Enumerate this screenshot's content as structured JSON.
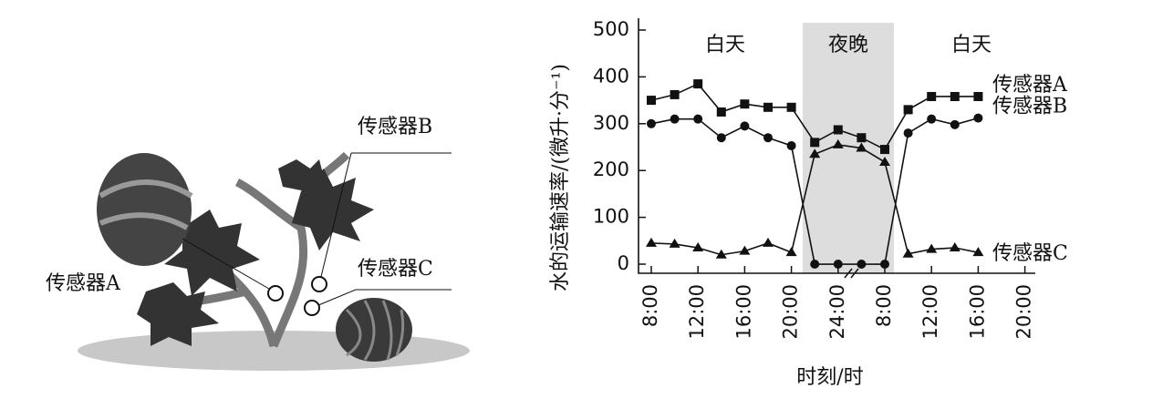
{
  "illustration": {
    "labels": [
      "传感器A",
      "传感器B",
      "传感器C"
    ]
  },
  "chart_data": {
    "type": "line",
    "ylabel": "水的运输速率/(微升·分⁻¹)",
    "xlabel": "时刻/时",
    "annotations": [
      "白天",
      "夜晚",
      "白天"
    ],
    "categories": [
      "8:00",
      null,
      "12:00",
      null,
      "16:00",
      null,
      "20:00",
      null,
      "24:00",
      null,
      "8:00",
      null,
      "12:00",
      null,
      "16:00",
      null,
      "20:00"
    ],
    "series": [
      {
        "name": "传感器A",
        "color": "#111111",
        "marker": "square",
        "values": [
          350,
          362,
          385,
          325,
          342,
          335,
          335,
          260,
          287,
          270,
          245,
          330,
          358,
          358,
          358,
          null,
          null
        ]
      },
      {
        "name": "传感器B",
        "color": "#111111",
        "marker": "circle",
        "values": [
          300,
          310,
          310,
          270,
          295,
          270,
          253,
          0,
          0,
          0,
          0,
          280,
          310,
          298,
          312,
          null,
          null
        ]
      },
      {
        "name": "传感器C",
        "color": "#111111",
        "marker": "triangle",
        "values": [
          45,
          43,
          35,
          20,
          28,
          45,
          25,
          235,
          255,
          248,
          218,
          22,
          32,
          35,
          25,
          null,
          null
        ]
      }
    ],
    "ylim": [
      -20,
      520
    ],
    "yticks": [
      0,
      100,
      200,
      300,
      400,
      500
    ],
    "grid": false
  }
}
